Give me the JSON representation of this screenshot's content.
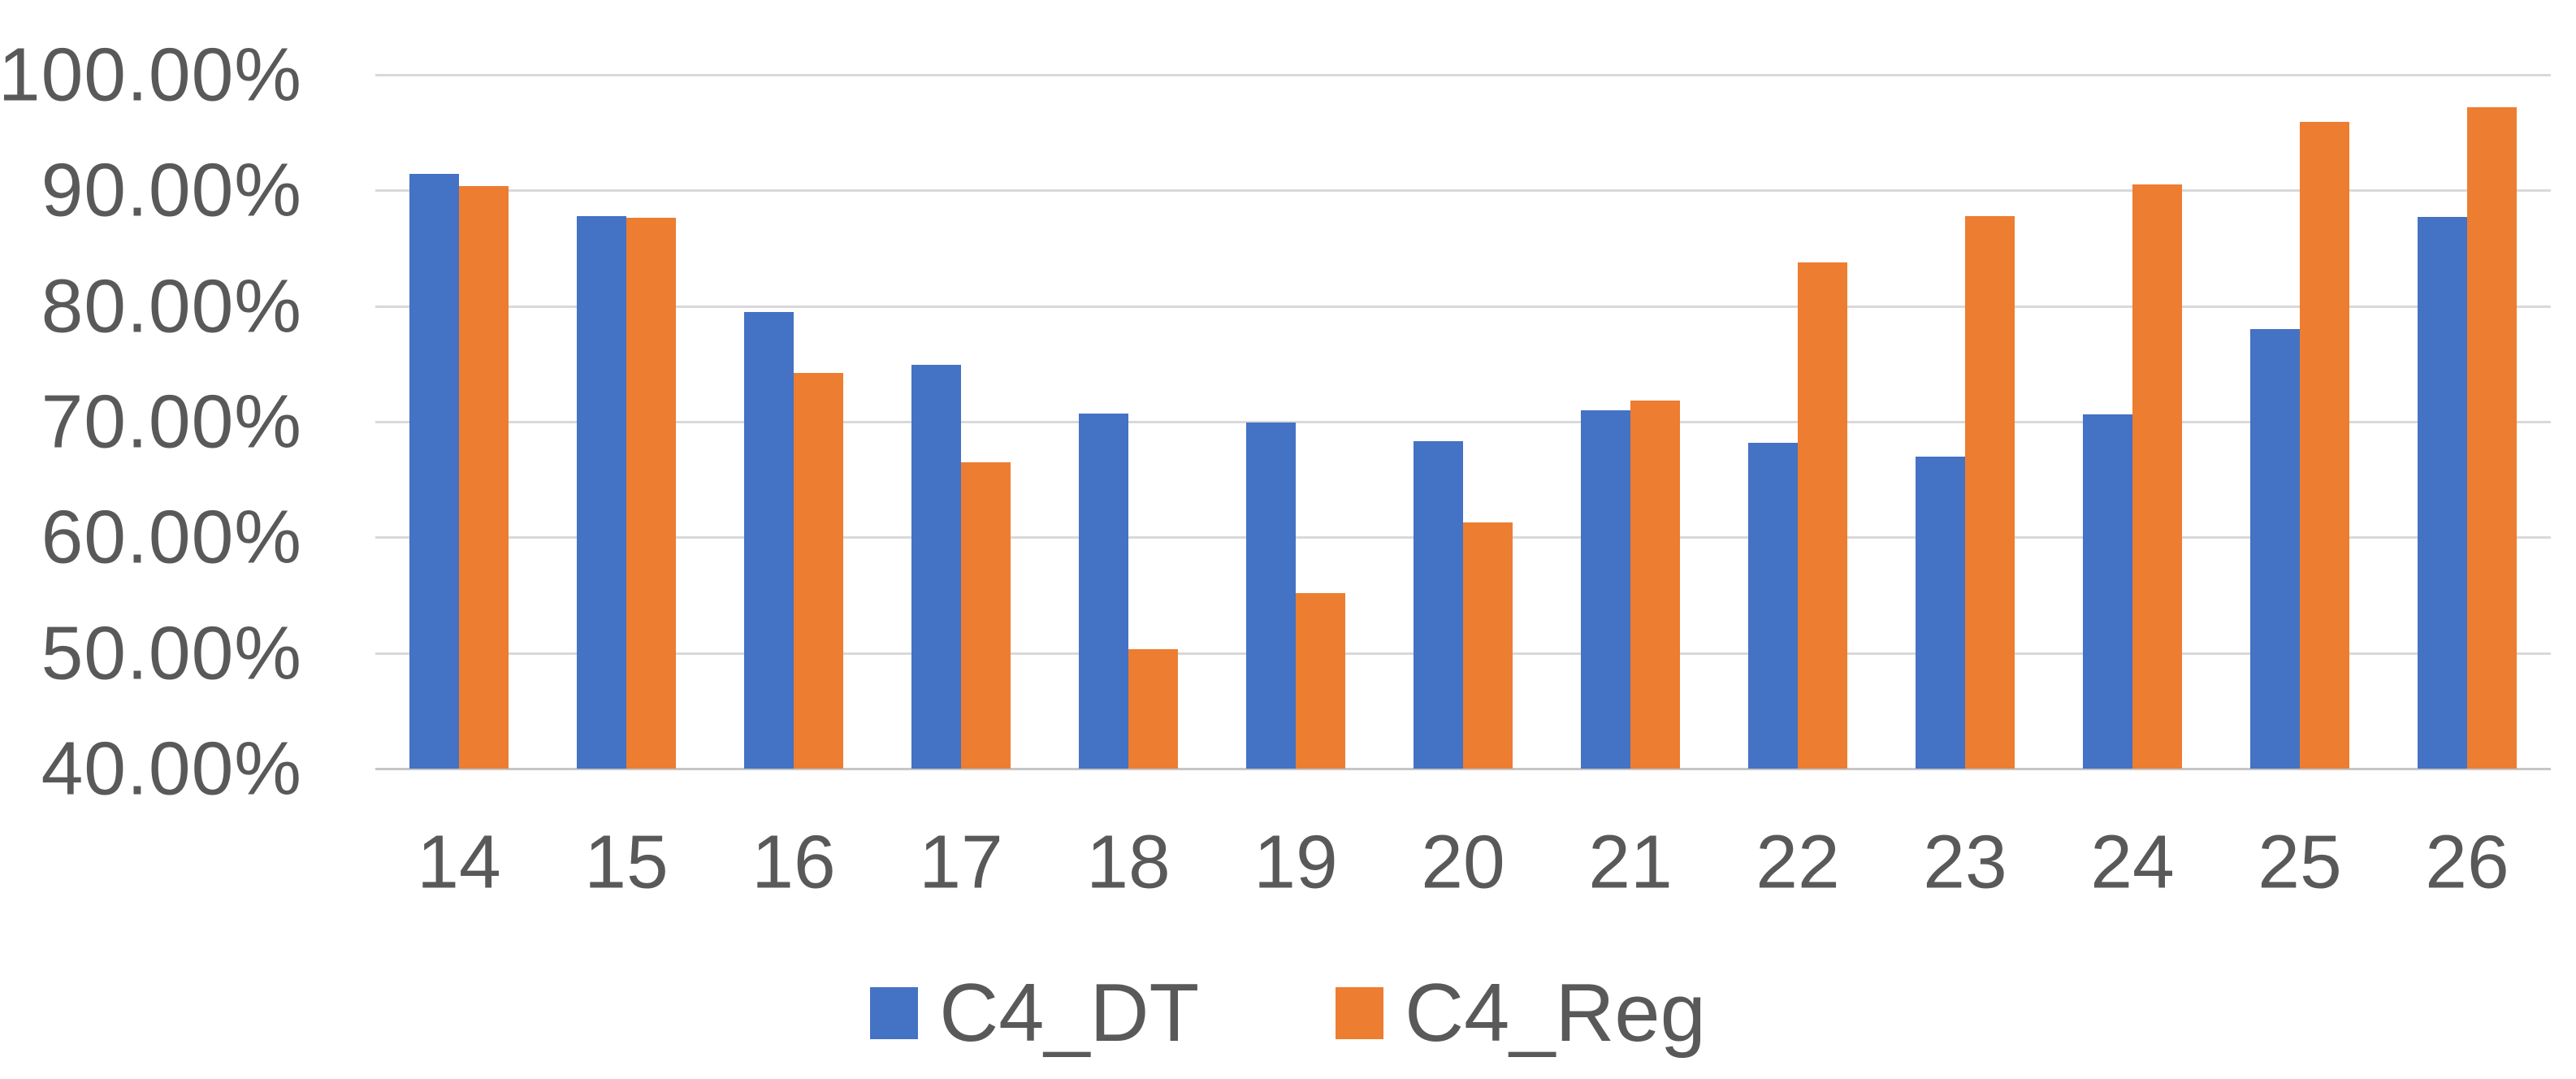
{
  "chart_data": {
    "type": "bar",
    "title": "",
    "xlabel": "",
    "ylabel": "",
    "categories": [
      "14",
      "15",
      "16",
      "17",
      "18",
      "19",
      "20",
      "21",
      "22",
      "23",
      "24",
      "25",
      "26"
    ],
    "series": [
      {
        "name": "C4_DT",
        "color": "#4472C4",
        "values": [
          91.4,
          87.8,
          79.5,
          74.9,
          70.7,
          69.9,
          68.3,
          71.0,
          68.2,
          67.0,
          70.6,
          78.0,
          87.7
        ]
      },
      {
        "name": "C4_Reg",
        "color": "#ED7D31",
        "values": [
          90.4,
          87.6,
          74.2,
          66.5,
          50.3,
          55.2,
          61.3,
          71.8,
          83.8,
          87.8,
          90.5,
          95.9,
          97.2
        ]
      }
    ],
    "value_unit": "%",
    "ylim": [
      40,
      100
    ],
    "y_tick_step": 10,
    "y_ticks": [
      "100.00%",
      "90.00%",
      "80.00%",
      "70.00%",
      "60.00%",
      "50.00%",
      "40.00%"
    ],
    "grid": true,
    "legend_position": "bottom",
    "background_color": "#FFFFFF",
    "gridline_color": "#D9D9D9",
    "axis_text_color": "#595959"
  }
}
